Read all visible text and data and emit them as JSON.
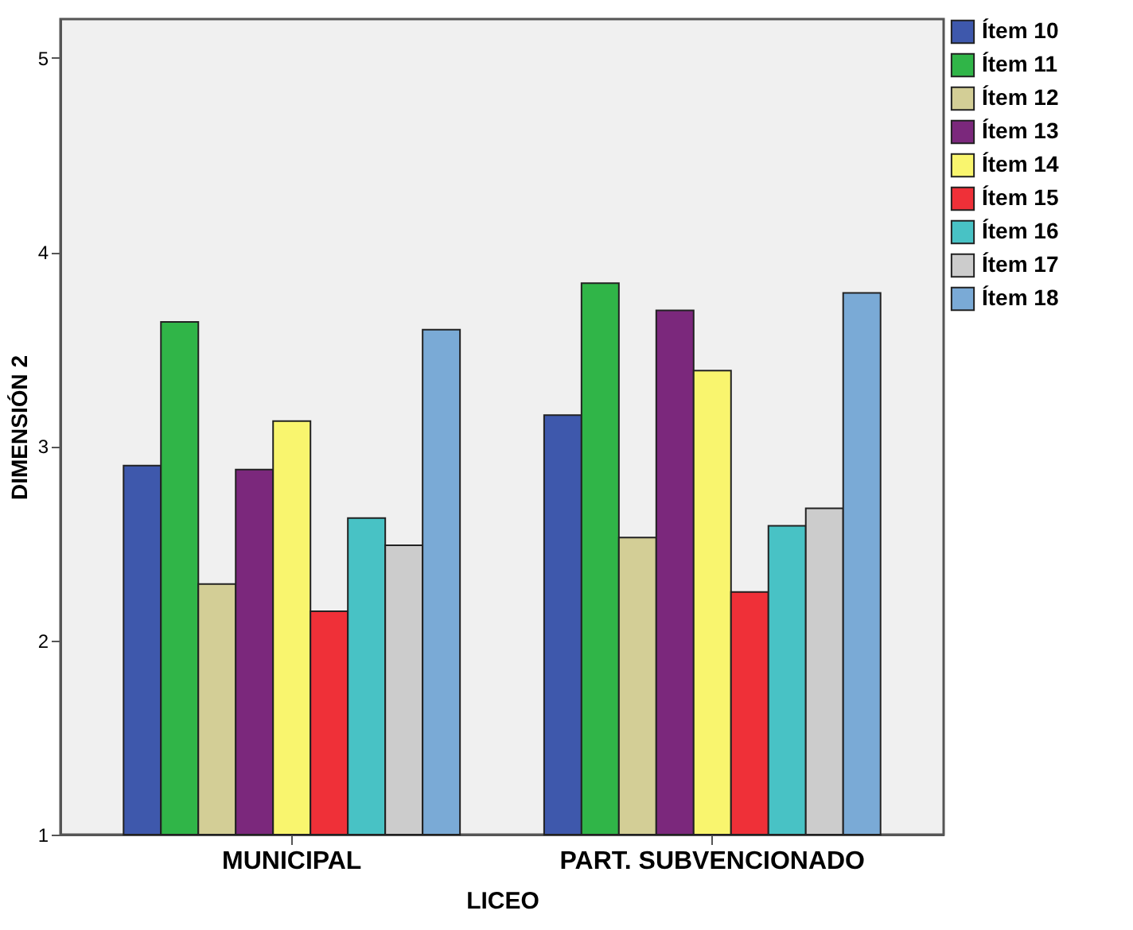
{
  "chart_data": {
    "type": "bar",
    "xlabel": "LICEO",
    "ylabel": "DIMENSIÓN 2",
    "categories": [
      "MUNICIPAL",
      "PART. SUBVENCIONADO"
    ],
    "series": [
      {
        "name": "Ítem 10",
        "color": "#3e58ac",
        "values": [
          2.9,
          3.16
        ]
      },
      {
        "name": "Ítem 11",
        "color": "#30b548",
        "values": [
          3.64,
          3.84
        ]
      },
      {
        "name": "Ítem 12",
        "color": "#d3ce96",
        "values": [
          2.29,
          2.53
        ]
      },
      {
        "name": "Ítem 13",
        "color": "#7b287c",
        "values": [
          2.88,
          3.7
        ]
      },
      {
        "name": "Ítem 14",
        "color": "#f9f56e",
        "values": [
          3.13,
          3.39
        ]
      },
      {
        "name": "Ítem 15",
        "color": "#ef3038",
        "values": [
          2.15,
          2.25
        ]
      },
      {
        "name": "Ítem 16",
        "color": "#48c2c5",
        "values": [
          2.63,
          2.59
        ]
      },
      {
        "name": "Ítem 17",
        "color": "#cccccc",
        "values": [
          2.49,
          2.68
        ]
      },
      {
        "name": "Ítem 18",
        "color": "#7aaad6",
        "values": [
          3.6,
          3.79
        ]
      }
    ],
    "ylim": [
      1,
      5.2
    ],
    "yticks": [
      1,
      2,
      3,
      4,
      5
    ],
    "grid": false,
    "legend": "top right"
  }
}
